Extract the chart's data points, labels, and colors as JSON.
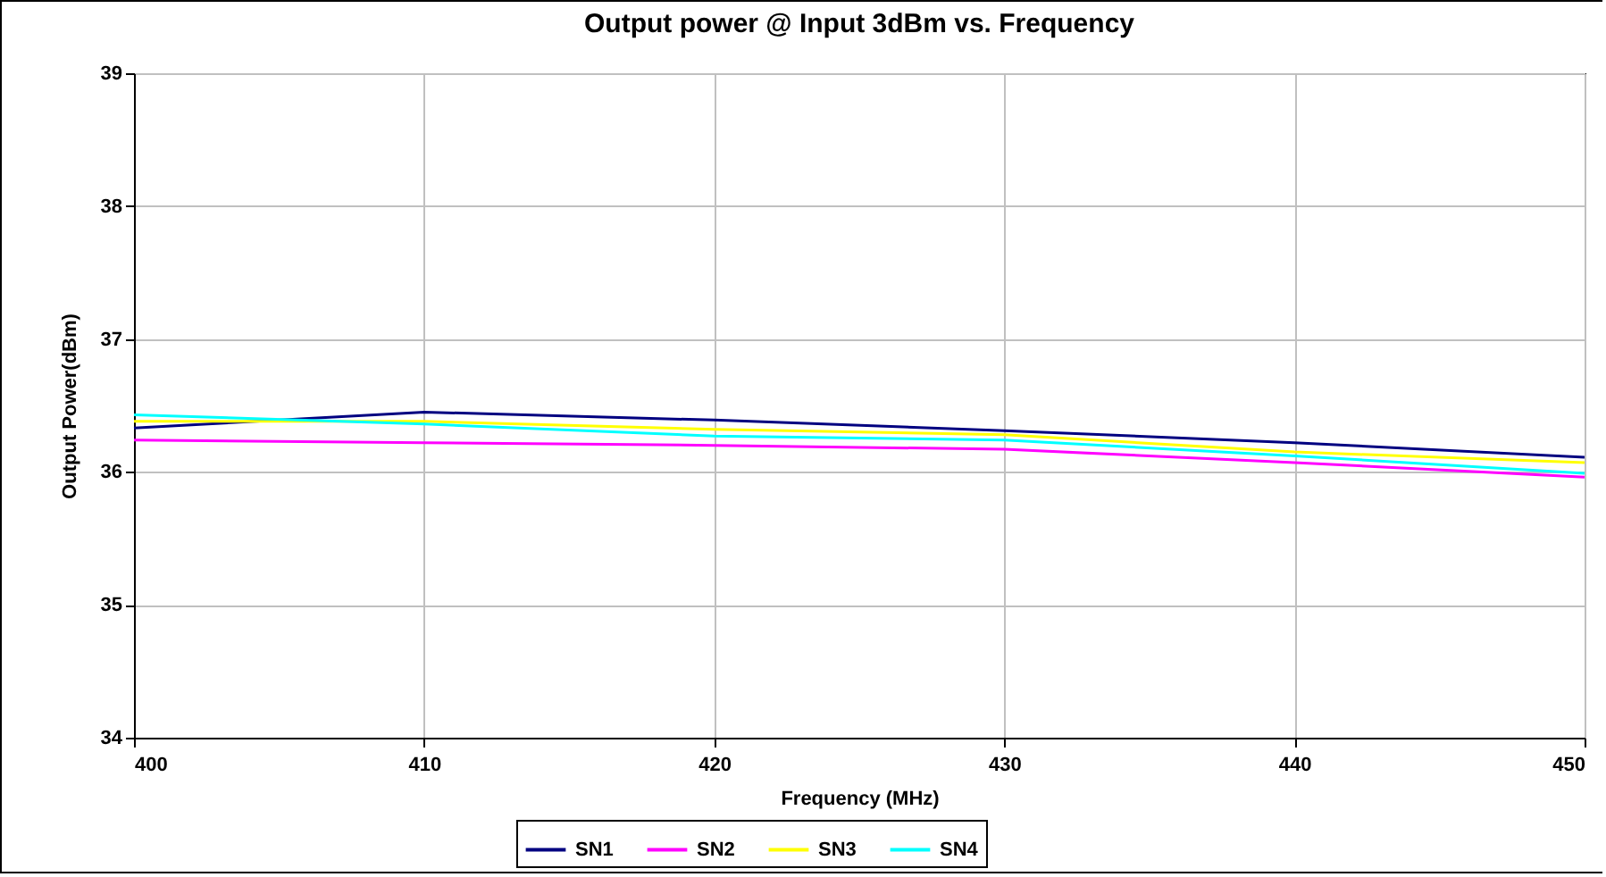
{
  "chart_data": {
    "type": "line",
    "title": "Output power @ Input 3dBm vs. Frequency",
    "xlabel": "Frequency (MHz)",
    "ylabel": "Output Power(dBm)",
    "x": [
      400,
      410,
      420,
      430,
      440,
      450
    ],
    "series": [
      {
        "name": "SN1",
        "color": "#000080",
        "values": [
          36.33,
          36.45,
          36.39,
          36.31,
          36.22,
          36.11
        ]
      },
      {
        "name": "SN2",
        "color": "#ff00ff",
        "values": [
          36.24,
          36.22,
          36.2,
          36.17,
          36.07,
          35.96
        ]
      },
      {
        "name": "SN3",
        "color": "#ffff00",
        "values": [
          36.38,
          36.38,
          36.32,
          36.28,
          36.15,
          36.07
        ]
      },
      {
        "name": "SN4",
        "color": "#00ffff",
        "values": [
          36.43,
          36.36,
          36.27,
          36.24,
          36.12,
          35.99
        ]
      }
    ],
    "xlim": [
      400,
      450
    ],
    "xticks": [
      400,
      410,
      420,
      430,
      440,
      450
    ],
    "ylim": [
      34,
      39
    ],
    "yticks": [
      34,
      35,
      36,
      37,
      38,
      39
    ],
    "grid": true,
    "legend": "bottom",
    "marker": "none",
    "line_style": "solid"
  }
}
